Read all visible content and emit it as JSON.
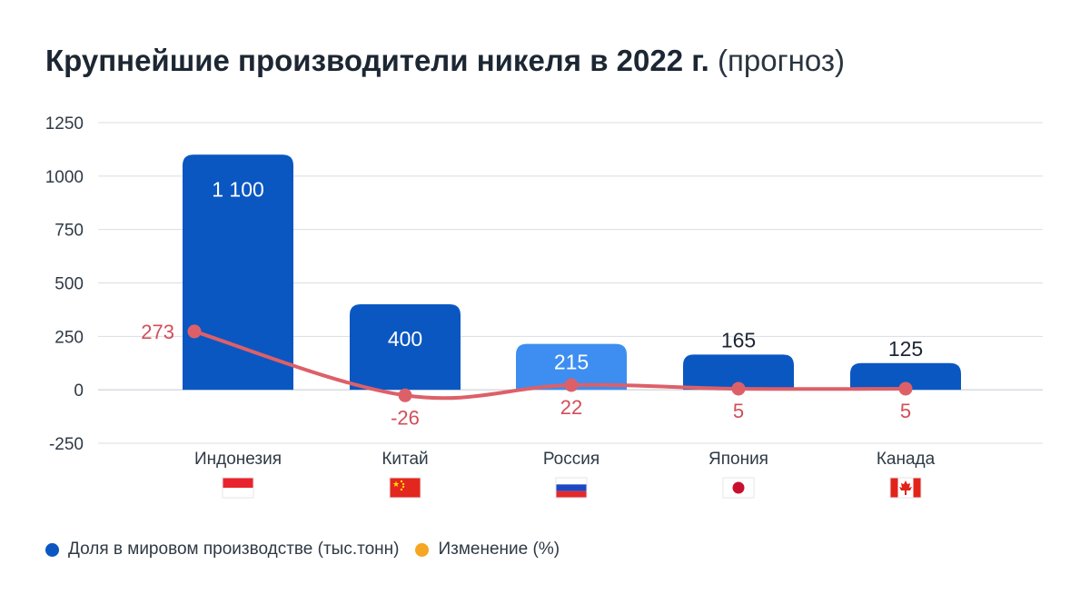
{
  "title": {
    "main": "Крупнейшие производители никеля в 2022 г.",
    "suffix": "(прогноз)"
  },
  "chart_data": {
    "type": "bar",
    "categories": [
      "Индонезия",
      "Китай",
      "Россия",
      "Япония",
      "Канада"
    ],
    "series": [
      {
        "name": "Доля в мировом производстве (тыс.тонн)",
        "type": "bar",
        "values": [
          1100,
          400,
          215,
          165,
          125
        ],
        "labels": [
          "1 100",
          "400",
          "215",
          "165",
          "125"
        ],
        "color": "#0a57c2"
      },
      {
        "name": "Изменение (%)",
        "type": "line",
        "values": [
          273,
          -26,
          22,
          5,
          5
        ],
        "labels": [
          "273",
          "-26",
          "22",
          "5",
          "5"
        ],
        "color": "#dd6068"
      }
    ],
    "highlight": {
      "category": "Россия",
      "color": "#3d8ef0"
    },
    "y_ticks": [
      "1250",
      "1000",
      "750",
      "500",
      "250",
      "0",
      "-250"
    ],
    "ylim": [
      -250,
      1250
    ],
    "grid": true,
    "legend_position": "bottom-left",
    "flags": [
      "indonesia-flag",
      "china-flag",
      "russia-flag",
      "japan-flag",
      "canada-flag"
    ]
  },
  "legend": [
    {
      "label": "Доля в мировом производстве (тыс.тонн)",
      "color": "#0a57c2"
    },
    {
      "label": "Изменение (%)",
      "color": "#f5a623"
    }
  ],
  "colors": {
    "bar": "#0a57c2",
    "bar_highlight": "#3d8ef0",
    "line": "#dd6068",
    "grid": "#d9dde3",
    "axis_text": "#2f3a45"
  }
}
